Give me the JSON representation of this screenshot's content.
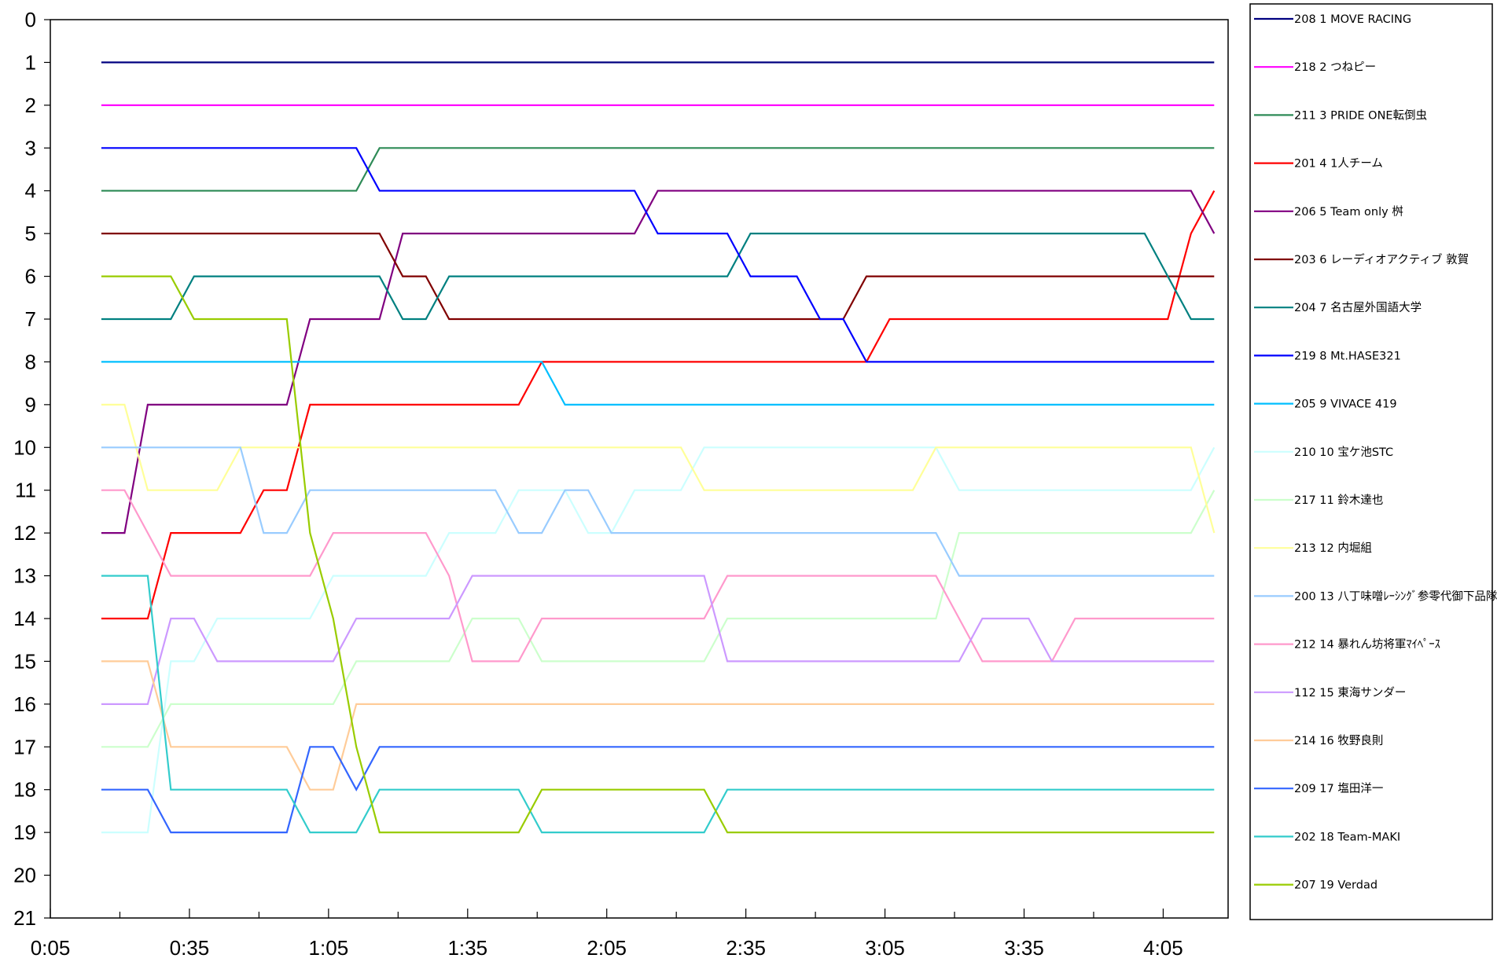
{
  "chart_data": {
    "type": "line",
    "title": "",
    "xlabel": "",
    "ylabel": "",
    "x_tick_labels": [
      "0:05",
      "0:35",
      "1:05",
      "1:35",
      "2:05",
      "2:35",
      "3:05",
      "3:35",
      "4:05"
    ],
    "x_ticks_minutes": [
      5,
      35,
      65,
      95,
      125,
      155,
      185,
      215,
      245
    ],
    "xlim_minutes": [
      5,
      259
    ],
    "x": [
      16,
      21,
      26,
      31,
      36,
      41,
      46,
      51,
      56,
      61,
      66,
      71,
      76,
      81,
      86,
      91,
      96,
      101,
      106,
      111,
      116,
      121,
      126,
      131,
      136,
      141,
      146,
      151,
      156,
      161,
      166,
      171,
      176,
      181,
      186,
      191,
      196,
      201,
      206,
      211,
      216,
      221,
      226,
      231,
      236,
      241,
      246,
      251,
      256
    ],
    "ylim": [
      0,
      21
    ],
    "y_inverted": true,
    "y_ticks": [
      0,
      1,
      2,
      3,
      4,
      5,
      6,
      7,
      8,
      9,
      10,
      11,
      12,
      13,
      14,
      15,
      16,
      17,
      18,
      19,
      20,
      21
    ],
    "grid": false,
    "legend_placement": "right",
    "series": [
      {
        "name": "208 1 MOVE RACING",
        "color": "#000080",
        "values": [
          1,
          1,
          1,
          1,
          1,
          1,
          1,
          1,
          1,
          1,
          1,
          1,
          1,
          1,
          1,
          1,
          1,
          1,
          1,
          1,
          1,
          1,
          1,
          1,
          1,
          1,
          1,
          1,
          1,
          1,
          1,
          1,
          1,
          1,
          1,
          1,
          1,
          1,
          1,
          1,
          1,
          1,
          1,
          1,
          1,
          1,
          1,
          1,
          1
        ]
      },
      {
        "name": "218 2 つねピー",
        "color": "#FF00FF",
        "values": [
          2,
          2,
          2,
          2,
          2,
          2,
          2,
          2,
          2,
          2,
          2,
          2,
          2,
          2,
          2,
          2,
          2,
          2,
          2,
          2,
          2,
          2,
          2,
          2,
          2,
          2,
          2,
          2,
          2,
          2,
          2,
          2,
          2,
          2,
          2,
          2,
          2,
          2,
          2,
          2,
          2,
          2,
          2,
          2,
          2,
          2,
          2,
          2,
          2
        ]
      },
      {
        "name": "211 3 PRIDE ONE転倒虫",
        "color": "#2E8B57",
        "values": [
          4,
          4,
          4,
          4,
          4,
          4,
          4,
          4,
          4,
          4,
          4,
          4,
          3,
          3,
          3,
          3,
          3,
          3,
          3,
          3,
          3,
          3,
          3,
          3,
          3,
          3,
          3,
          3,
          3,
          3,
          3,
          3,
          3,
          3,
          3,
          3,
          3,
          3,
          3,
          3,
          3,
          3,
          3,
          3,
          3,
          3,
          3,
          3,
          3
        ]
      },
      {
        "name": "201 4 1人チーム",
        "color": "#FF0000",
        "values": [
          14,
          14,
          14,
          12,
          12,
          12,
          12,
          11,
          11,
          9,
          9,
          9,
          9,
          9,
          9,
          9,
          9,
          9,
          9,
          8,
          8,
          8,
          8,
          8,
          8,
          8,
          8,
          8,
          8,
          8,
          8,
          8,
          8,
          8,
          7,
          7,
          7,
          7,
          7,
          7,
          7,
          7,
          7,
          7,
          7,
          7,
          7,
          5,
          4
        ]
      },
      {
        "name": "206 5 Team only 桝",
        "color": "#800080",
        "values": [
          12,
          12,
          9,
          9,
          9,
          9,
          9,
          9,
          9,
          7,
          7,
          7,
          7,
          5,
          5,
          5,
          5,
          5,
          5,
          5,
          5,
          5,
          5,
          5,
          4,
          4,
          4,
          4,
          4,
          4,
          4,
          4,
          4,
          4,
          4,
          4,
          4,
          4,
          4,
          4,
          4,
          4,
          4,
          4,
          4,
          4,
          4,
          4,
          5
        ]
      },
      {
        "name": "203 6 レーディオアクティブ 敦賀",
        "color": "#800000",
        "values": [
          5,
          5,
          5,
          5,
          5,
          5,
          5,
          5,
          5,
          5,
          5,
          5,
          5,
          6,
          6,
          7,
          7,
          7,
          7,
          7,
          7,
          7,
          7,
          7,
          7,
          7,
          7,
          7,
          7,
          7,
          7,
          7,
          7,
          6,
          6,
          6,
          6,
          6,
          6,
          6,
          6,
          6,
          6,
          6,
          6,
          6,
          6,
          6,
          6
        ]
      },
      {
        "name": "204 7 名古屋外国語大学",
        "color": "#008080",
        "values": [
          7,
          7,
          7,
          7,
          6,
          6,
          6,
          6,
          6,
          6,
          6,
          6,
          6,
          7,
          7,
          6,
          6,
          6,
          6,
          6,
          6,
          6,
          6,
          6,
          6,
          6,
          6,
          6,
          5,
          5,
          5,
          5,
          5,
          5,
          5,
          5,
          5,
          5,
          5,
          5,
          5,
          5,
          5,
          5,
          5,
          5,
          6,
          7,
          7
        ]
      },
      {
        "name": "219 8 Mt.HASE321",
        "color": "#0000FF",
        "values": [
          3,
          3,
          3,
          3,
          3,
          3,
          3,
          3,
          3,
          3,
          3,
          3,
          4,
          4,
          4,
          4,
          4,
          4,
          4,
          4,
          4,
          4,
          4,
          4,
          5,
          5,
          5,
          5,
          6,
          6,
          6,
          7,
          7,
          8,
          8,
          8,
          8,
          8,
          8,
          8,
          8,
          8,
          8,
          8,
          8,
          8,
          8,
          8,
          8
        ]
      },
      {
        "name": "205 9 VIVACE 419",
        "color": "#00BFFF",
        "values": [
          8,
          8,
          8,
          8,
          8,
          8,
          8,
          8,
          8,
          8,
          8,
          8,
          8,
          8,
          8,
          8,
          8,
          8,
          8,
          8,
          9,
          9,
          9,
          9,
          9,
          9,
          9,
          9,
          9,
          9,
          9,
          9,
          9,
          9,
          9,
          9,
          9,
          9,
          9,
          9,
          9,
          9,
          9,
          9,
          9,
          9,
          9,
          9,
          9
        ]
      },
      {
        "name": "210 10 宝ケ池STC",
        "color": "#CCFFFF",
        "values": [
          19,
          19,
          19,
          15,
          15,
          14,
          14,
          14,
          14,
          14,
          13,
          13,
          13,
          13,
          13,
          12,
          12,
          12,
          11,
          11,
          11,
          12,
          12,
          11,
          11,
          11,
          10,
          10,
          10,
          10,
          10,
          10,
          10,
          10,
          10,
          10,
          10,
          11,
          11,
          11,
          11,
          11,
          11,
          11,
          11,
          11,
          11,
          11,
          10
        ]
      },
      {
        "name": "217 11 鈴木達也",
        "color": "#CCFFCC",
        "values": [
          17,
          17,
          17,
          16,
          16,
          16,
          16,
          16,
          16,
          16,
          16,
          15,
          15,
          15,
          15,
          15,
          14,
          14,
          14,
          15,
          15,
          15,
          15,
          15,
          15,
          15,
          15,
          14,
          14,
          14,
          14,
          14,
          14,
          14,
          14,
          14,
          14,
          12,
          12,
          12,
          12,
          12,
          12,
          12,
          12,
          12,
          12,
          12,
          11
        ]
      },
      {
        "name": "213 12 内堀組",
        "color": "#FFFF99",
        "values": [
          9,
          9,
          11,
          11,
          11,
          11,
          10,
          10,
          10,
          10,
          10,
          10,
          10,
          10,
          10,
          10,
          10,
          10,
          10,
          10,
          10,
          10,
          10,
          10,
          10,
          10,
          11,
          11,
          11,
          11,
          11,
          11,
          11,
          11,
          11,
          11,
          10,
          10,
          10,
          10,
          10,
          10,
          10,
          10,
          10,
          10,
          10,
          10,
          12
        ]
      },
      {
        "name": "200 13 八丁味噌ﾚｰｼﾝｸﾞ参零代御下品隊",
        "color": "#99CCFF",
        "values": [
          10,
          10,
          10,
          10,
          10,
          10,
          10,
          12,
          12,
          11,
          11,
          11,
          11,
          11,
          11,
          11,
          11,
          11,
          12,
          12,
          11,
          11,
          12,
          12,
          12,
          12,
          12,
          12,
          12,
          12,
          12,
          12,
          12,
          12,
          12,
          12,
          12,
          13,
          13,
          13,
          13,
          13,
          13,
          13,
          13,
          13,
          13,
          13,
          13
        ]
      },
      {
        "name": "212 14 暴れん坊将軍ﾏｲﾍﾟｰｽ",
        "color": "#FF99CC",
        "values": [
          11,
          11,
          12,
          13,
          13,
          13,
          13,
          13,
          13,
          13,
          12,
          12,
          12,
          12,
          12,
          13,
          15,
          15,
          15,
          14,
          14,
          14,
          14,
          14,
          14,
          14,
          14,
          13,
          13,
          13,
          13,
          13,
          13,
          13,
          13,
          13,
          13,
          14,
          15,
          15,
          15,
          15,
          14,
          14,
          14,
          14,
          14,
          14,
          14
        ]
      },
      {
        "name": "112 15 東海サンダー",
        "color": "#CC99FF",
        "values": [
          16,
          16,
          16,
          14,
          14,
          15,
          15,
          15,
          15,
          15,
          15,
          14,
          14,
          14,
          14,
          14,
          13,
          13,
          13,
          13,
          13,
          13,
          13,
          13,
          13,
          13,
          13,
          15,
          15,
          15,
          15,
          15,
          15,
          15,
          15,
          15,
          15,
          15,
          14,
          14,
          14,
          15,
          15,
          15,
          15,
          15,
          15,
          15,
          15
        ]
      },
      {
        "name": "214 16 牧野良則",
        "color": "#FFCC99",
        "values": [
          15,
          15,
          15,
          17,
          17,
          17,
          17,
          17,
          17,
          18,
          18,
          16,
          16,
          16,
          16,
          16,
          16,
          16,
          16,
          16,
          16,
          16,
          16,
          16,
          16,
          16,
          16,
          16,
          16,
          16,
          16,
          16,
          16,
          16,
          16,
          16,
          16,
          16,
          16,
          16,
          16,
          16,
          16,
          16,
          16,
          16,
          16,
          16,
          16
        ]
      },
      {
        "name": "209 17 塩田洋一",
        "color": "#3366FF",
        "values": [
          18,
          18,
          18,
          19,
          19,
          19,
          19,
          19,
          19,
          17,
          17,
          18,
          17,
          17,
          17,
          17,
          17,
          17,
          17,
          17,
          17,
          17,
          17,
          17,
          17,
          17,
          17,
          17,
          17,
          17,
          17,
          17,
          17,
          17,
          17,
          17,
          17,
          17,
          17,
          17,
          17,
          17,
          17,
          17,
          17,
          17,
          17,
          17,
          17
        ]
      },
      {
        "name": "202 18 Team-MAKI",
        "color": "#33CCCC",
        "values": [
          13,
          13,
          13,
          18,
          18,
          18,
          18,
          18,
          18,
          19,
          19,
          19,
          18,
          18,
          18,
          18,
          18,
          18,
          18,
          19,
          19,
          19,
          19,
          19,
          19,
          19,
          19,
          18,
          18,
          18,
          18,
          18,
          18,
          18,
          18,
          18,
          18,
          18,
          18,
          18,
          18,
          18,
          18,
          18,
          18,
          18,
          18,
          18,
          18
        ]
      },
      {
        "name": "207 19 Verdad",
        "color": "#99CC00",
        "values": [
          6,
          6,
          6,
          6,
          7,
          7,
          7,
          7,
          7,
          12,
          14,
          17,
          19,
          19,
          19,
          19,
          19,
          19,
          19,
          18,
          18,
          18,
          18,
          18,
          18,
          18,
          18,
          19,
          19,
          19,
          19,
          19,
          19,
          19,
          19,
          19,
          19,
          19,
          19,
          19,
          19,
          19,
          19,
          19,
          19,
          19,
          19,
          19,
          19
        ]
      }
    ]
  }
}
